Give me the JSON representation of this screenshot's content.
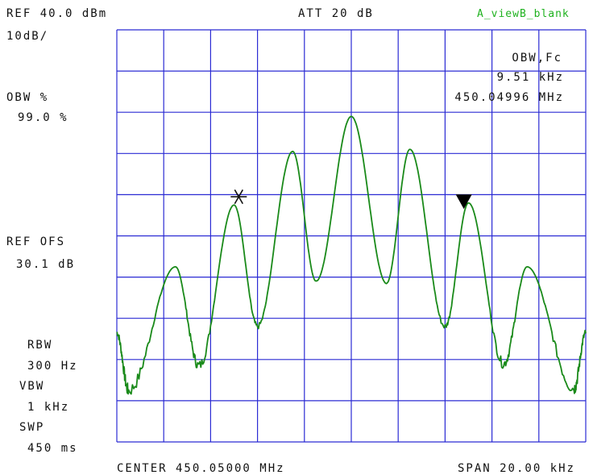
{
  "header": {
    "ref_level": "REF 40.0 dBm",
    "scale": "10dB/",
    "attenuation": "ATT 20 dB",
    "view_mode": "A_viewB_blank"
  },
  "left_panel": {
    "obw_label": "OBW %",
    "obw_value": "99.0 %",
    "ref_offset_label": "REF OFS",
    "ref_offset_value": "30.1 dB",
    "rbw_label": "RBW",
    "rbw_value": "300 Hz",
    "vbw_label": "VBW",
    "vbw_value": "1 kHz",
    "swp_label": "SWP",
    "swp_value": "450 ms"
  },
  "readout": {
    "title": "OBW,Fc",
    "bandwidth": "9.51 kHz",
    "center_freq": "450.04996 MHz"
  },
  "footer": {
    "center": "CENTER 450.05000 MHz",
    "span": "SPAN 20.00 kHz"
  },
  "colors": {
    "grid": "#2b2bd4",
    "trace": "#1a8a1a",
    "view_mode_text": "#1fb21f"
  },
  "markers": [
    {
      "name": "left-obw-marker",
      "icon": "asterisk"
    },
    {
      "name": "right-obw-marker",
      "icon": "down-triangle"
    }
  ],
  "chart_data": {
    "type": "line",
    "grid_divisions": {
      "x": 10,
      "y": 10
    },
    "x_range_khz": [
      -10,
      10
    ],
    "y_range_dbm": [
      -60,
      40
    ],
    "peaks": [
      {
        "x_khz": -7.5,
        "y_dbm": -17.5
      },
      {
        "x_khz": -5.0,
        "y_dbm": -2.5
      },
      {
        "x_khz": -2.5,
        "y_dbm": 10.5
      },
      {
        "x_khz": 0.0,
        "y_dbm": 19.0
      },
      {
        "x_khz": 2.5,
        "y_dbm": 11.0
      },
      {
        "x_khz": 5.0,
        "y_dbm": -2.0
      },
      {
        "x_khz": 7.5,
        "y_dbm": -17.5
      }
    ],
    "valleys": [
      {
        "x_khz": -9.5,
        "y_dbm": -47.5
      },
      {
        "x_khz": -6.5,
        "y_dbm": -41.5
      },
      {
        "x_khz": -4.0,
        "y_dbm": -32.0
      },
      {
        "x_khz": -1.5,
        "y_dbm": -21.0
      },
      {
        "x_khz": 1.5,
        "y_dbm": -21.5
      },
      {
        "x_khz": 4.0,
        "y_dbm": -32.0
      },
      {
        "x_khz": 6.5,
        "y_dbm": -41.0
      },
      {
        "x_khz": 9.5,
        "y_dbm": -47.0
      }
    ],
    "edges": [
      {
        "x_khz": -10.0,
        "y_dbm": -33.5
      },
      {
        "x_khz": 10.0,
        "y_dbm": -33.5
      }
    ],
    "marker_asterisk": {
      "x_khz": -4.8,
      "y_dbm": -0.5
    },
    "marker_triangle": {
      "x_khz": 4.8,
      "y_dbm": -1.5
    }
  }
}
